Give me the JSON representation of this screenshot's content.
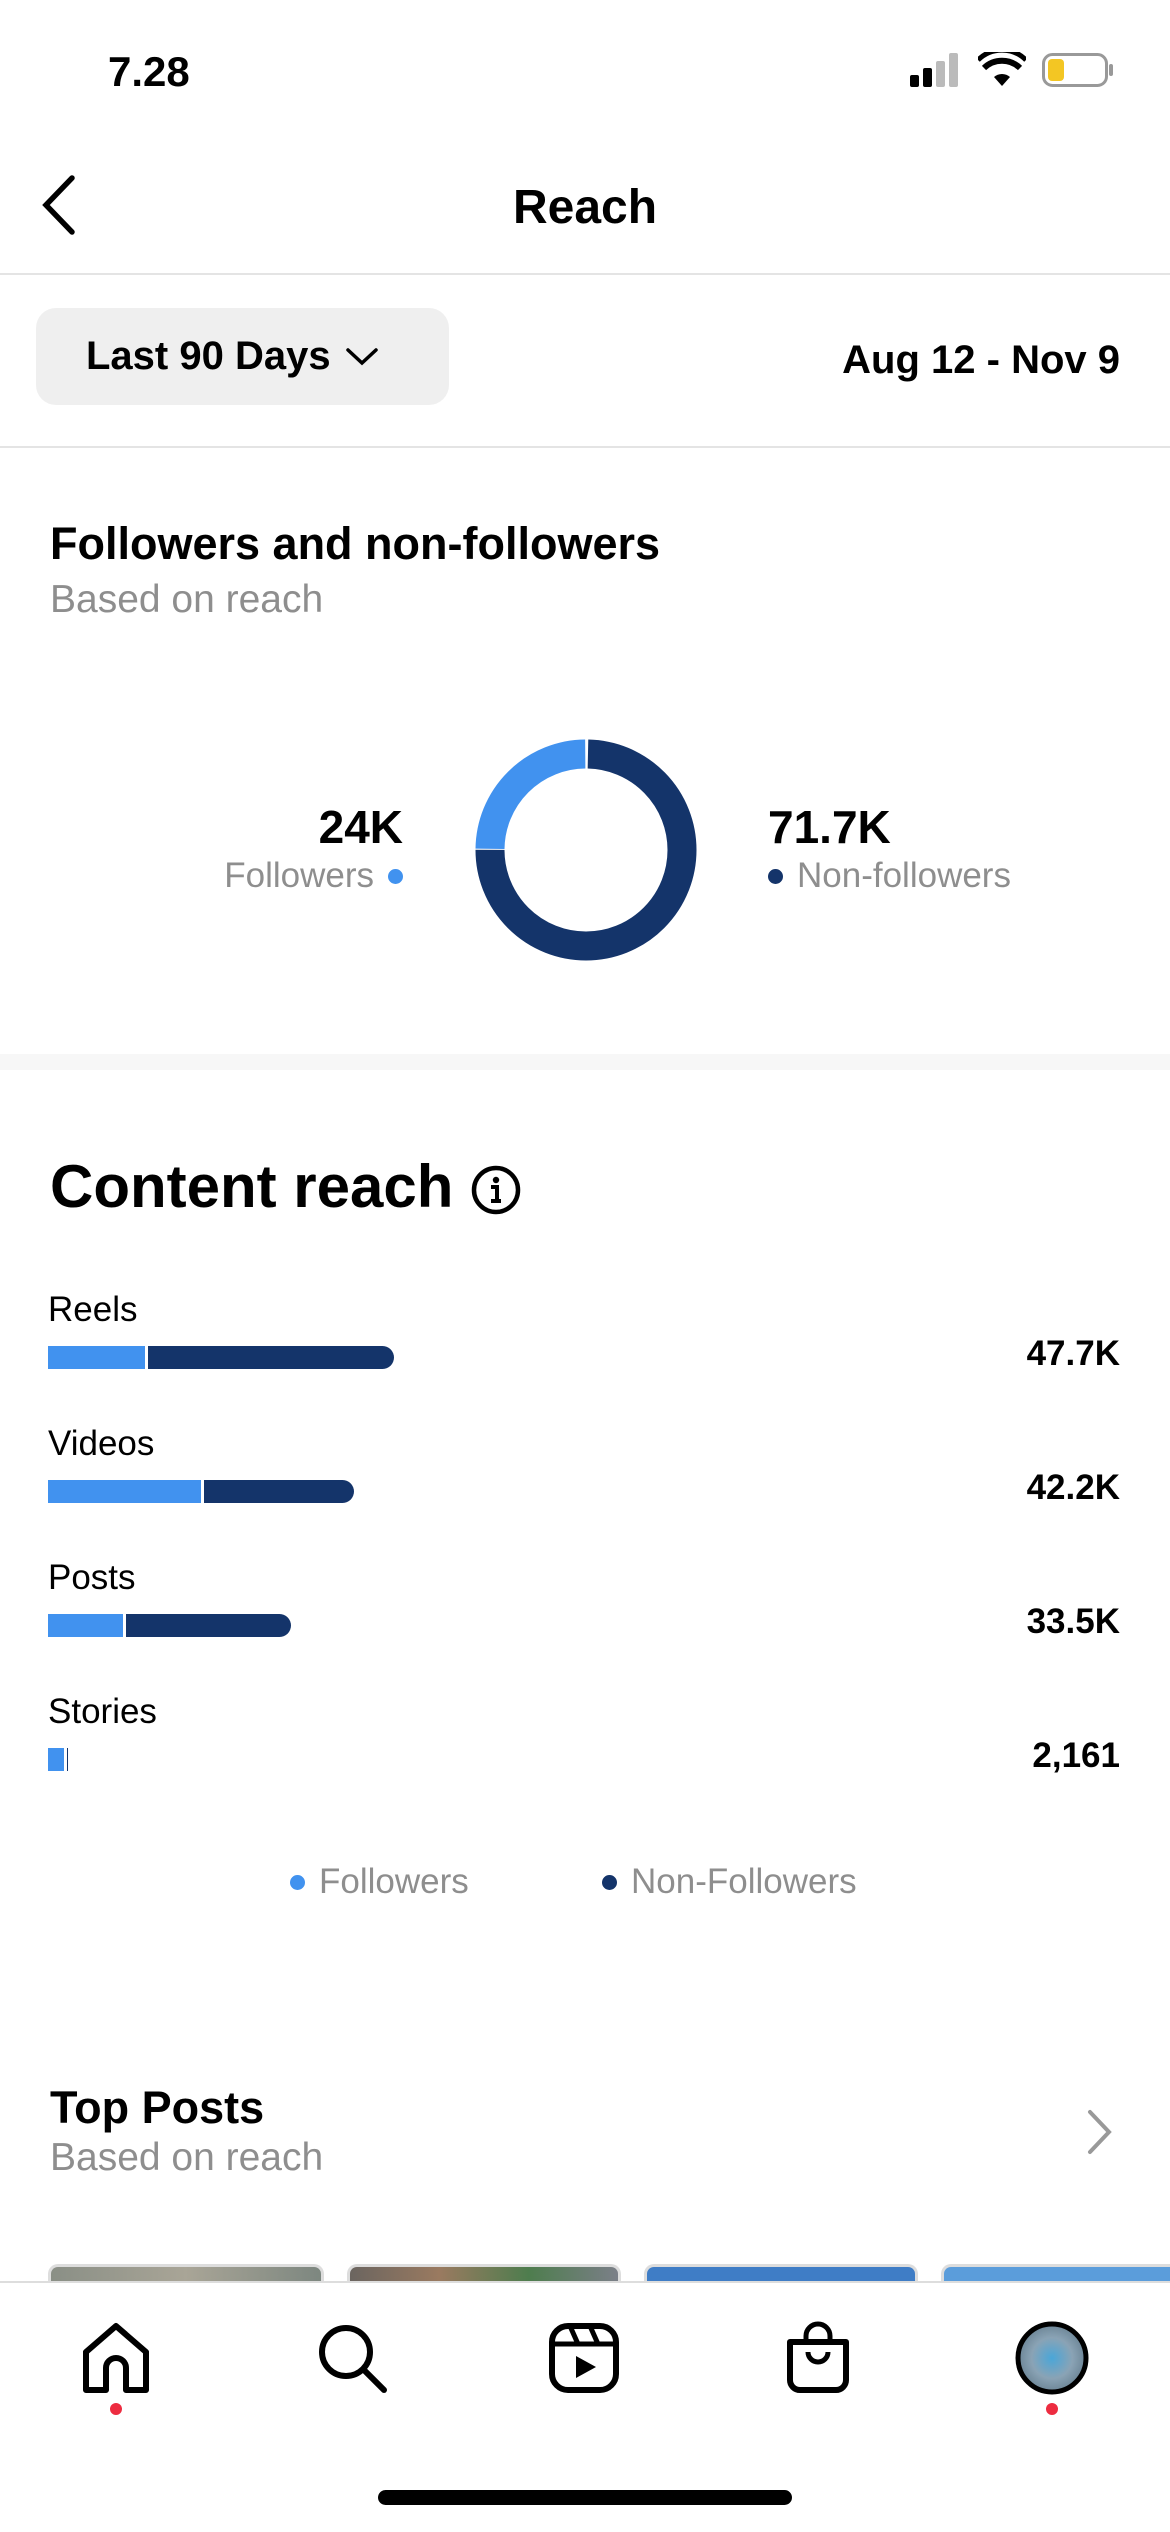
{
  "status_bar": {
    "time": "7.28"
  },
  "header": {
    "title": "Reach"
  },
  "filter": {
    "range_label": "Last 90 Days",
    "date_range": "Aug 12 - Nov 9"
  },
  "followers_section": {
    "title": "Followers and non-followers",
    "subtitle": "Based on reach",
    "followers_value": "24K",
    "followers_label": "Followers",
    "non_followers_value": "71.7K",
    "non_followers_label": "Non-followers",
    "followers_share": 0.25
  },
  "colors": {
    "followers": "#4192ef",
    "non_followers": "#14346a"
  },
  "content_reach": {
    "title": "Content reach",
    "rows": [
      {
        "label": "Reels",
        "value": "47.7K"
      },
      {
        "label": "Videos",
        "value": "42.2K"
      },
      {
        "label": "Posts",
        "value": "33.5K"
      },
      {
        "label": "Stories",
        "value": "2,161"
      }
    ],
    "legend": {
      "followers": "Followers",
      "non_followers": "Non-Followers"
    }
  },
  "chart_data": {
    "type": "bar",
    "orientation": "horizontal-stacked",
    "categories": [
      "Reels",
      "Videos",
      "Posts",
      "Stories"
    ],
    "totals": [
      47700,
      42200,
      33500,
      2161
    ],
    "follower_fraction": [
      0.28,
      0.5,
      0.31,
      0.8
    ],
    "series": [
      {
        "name": "Followers"
      },
      {
        "name": "Non-Followers"
      }
    ]
  },
  "top_posts": {
    "title": "Top Posts",
    "subtitle": "Based on reach"
  },
  "nav": {
    "items": [
      "home",
      "search",
      "reels",
      "shop",
      "profile"
    ]
  }
}
